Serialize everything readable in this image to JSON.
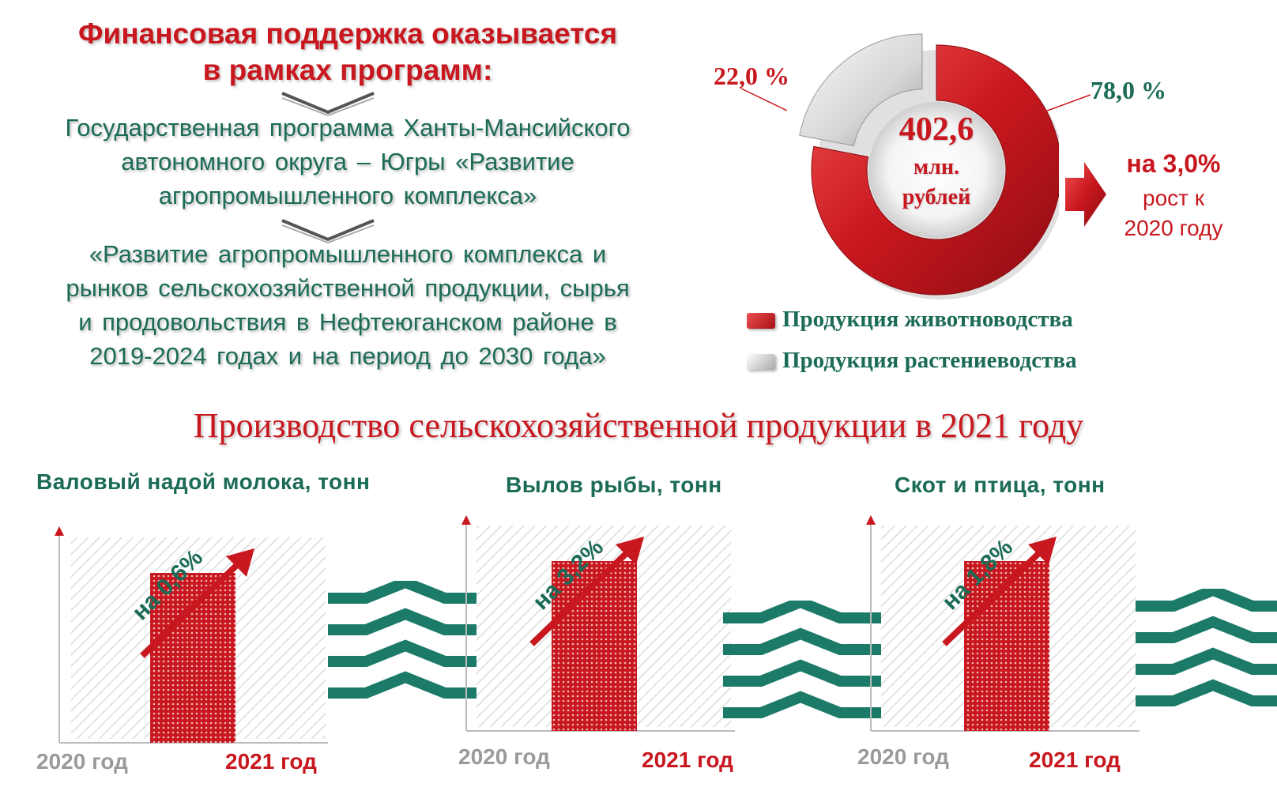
{
  "header": {
    "title_line1": "Финансовая поддержка оказывается",
    "title_line2": "в рамках программ:"
  },
  "programs": [
    {
      "lines": [
        "Государственная программа Ханты-Мансийского",
        "автономного округа – Югры «Развитие",
        "агропромышленного комплекса»"
      ]
    },
    {
      "lines": [
        "«Развитие агропромышленного комплекса и",
        "рынков сельскохозяйственной продукции, сырья",
        "и продовольствия в Нефтеюганском районе в",
        "2019-2024 годах и на период до 2030 года»"
      ]
    }
  ],
  "donut": {
    "total_value": "402,6",
    "total_unit_line1": "млн.",
    "total_unit_line2": "рублей",
    "growth_value": "на 3,0%",
    "growth_text_line1": "рост к",
    "growth_text_line2": "2020 году"
  },
  "chart_data": [
    {
      "type": "pie",
      "labels": [
        "Продукция животноводства",
        "Продукция растениеводства"
      ],
      "values": [
        78.0,
        22.0
      ],
      "value_labels": [
        "78,0 %",
        "22,0 %"
      ],
      "colors": [
        "#c8171e",
        "#d9d9d9"
      ],
      "legend_placement": "bottom"
    },
    {
      "type": "bar",
      "title": "Валовый надой молока, тонн",
      "categories": [
        "2020 год",
        "2021 год"
      ],
      "change_label": "на 0,6%"
    },
    {
      "type": "bar",
      "title": "Вылов рыбы, тонн",
      "categories": [
        "2020 год",
        "2021 год"
      ],
      "change_label": "на 3,2%"
    },
    {
      "type": "bar",
      "title": "Скот и птица, тонн",
      "categories": [
        "2020 год",
        "2021 год"
      ],
      "change_label": "на 1,8%"
    }
  ],
  "production": {
    "title": "Производство сельскохозяйственной продукции в 2021 году"
  },
  "colors": {
    "accent_red": "#c8171e",
    "accent_green": "#1b6b57",
    "grey": "#9a9a9a"
  }
}
